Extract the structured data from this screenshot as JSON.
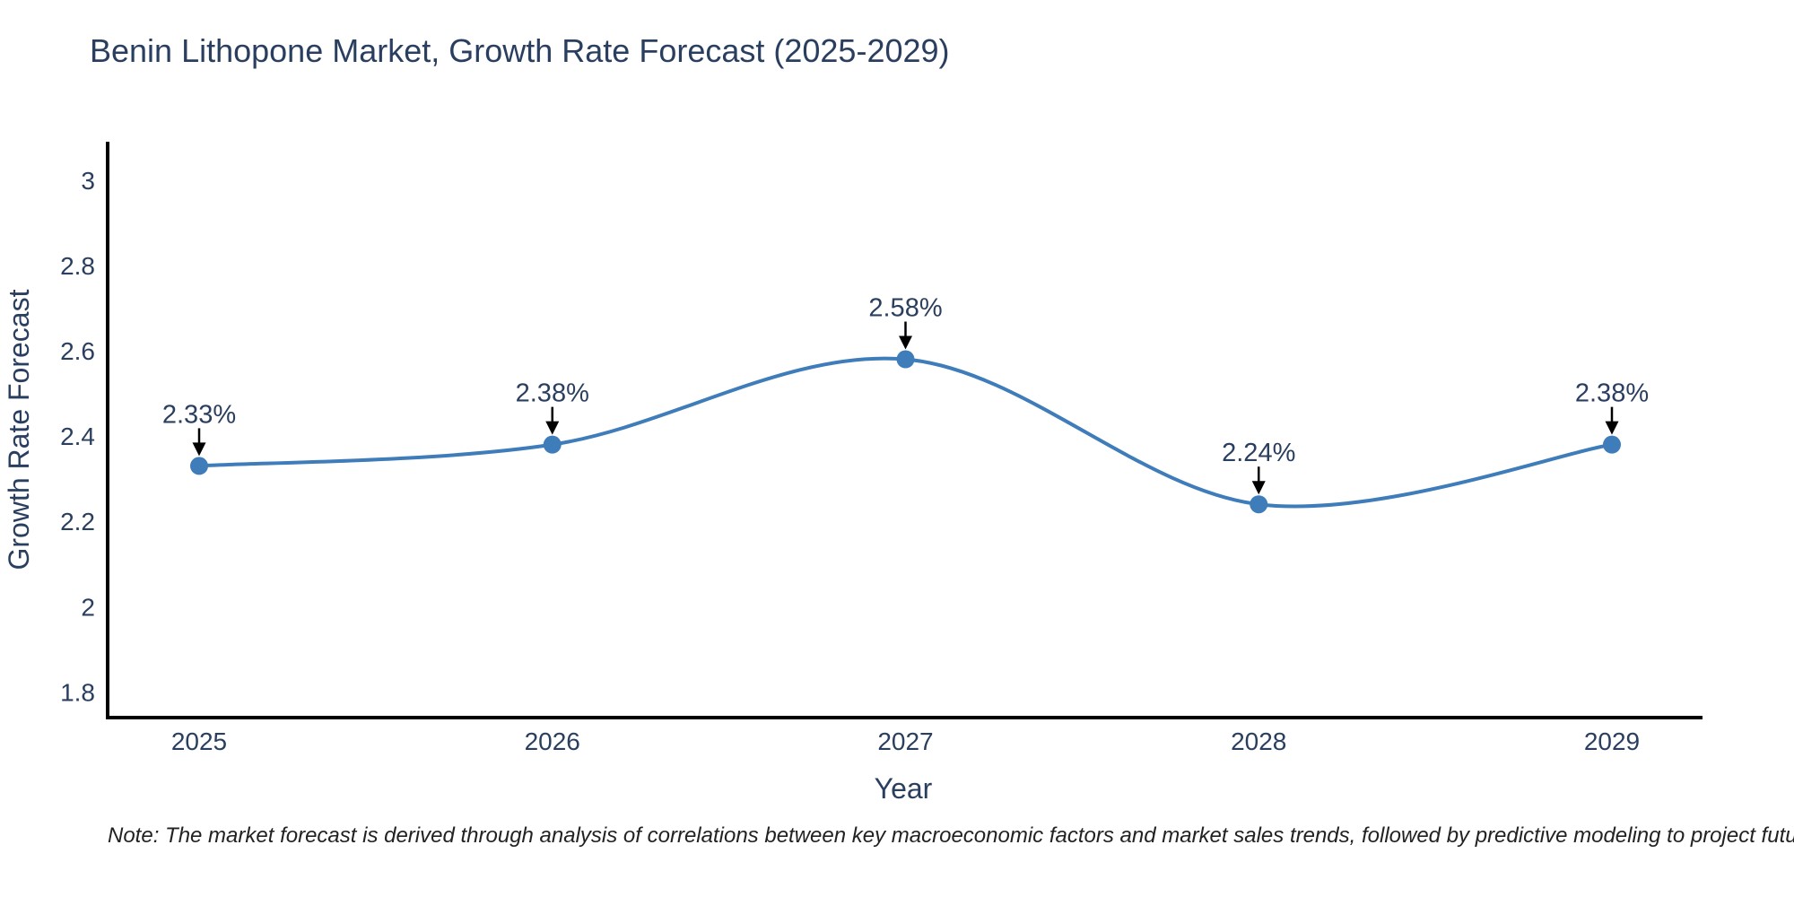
{
  "title": "Benin Lithopone Market, Growth Rate Forecast (2025-2029)",
  "note": "Note: The market forecast is derived through analysis of correlations between key macroeconomic factors and market sales trends, followed by predictive modeling to project future sales",
  "chart_data": {
    "type": "line",
    "line_shape": "spline",
    "title": "Benin Lithopone Market, Growth Rate Forecast (2025-2029)",
    "categories": [
      "2025",
      "2026",
      "2027",
      "2028",
      "2029"
    ],
    "series": [
      {
        "name": "Growth Rate Forecast",
        "values": [
          2.33,
          2.38,
          2.58,
          2.24,
          2.38
        ]
      }
    ],
    "point_labels": [
      "2.33%",
      "2.38%",
      "2.58%",
      "2.24%",
      "2.38%"
    ],
    "xlabel": "Year",
    "ylabel": "Growth Rate Forecast",
    "ytick_labels": [
      "1.8",
      "2",
      "2.2",
      "2.4",
      "2.6",
      "2.8",
      "3"
    ],
    "ytick_values": [
      1.8,
      2.0,
      2.2,
      2.4,
      2.6,
      2.8,
      3.0
    ],
    "ylim": [
      1.74,
      3.09
    ],
    "grid": false,
    "legend": "none",
    "colors": {
      "line": "#3f7cba",
      "marker": "#3f7cba",
      "axis": "#000000",
      "text": "#2a3f5f",
      "annotation_arrow": "#000000",
      "note_text": "#222222"
    }
  }
}
